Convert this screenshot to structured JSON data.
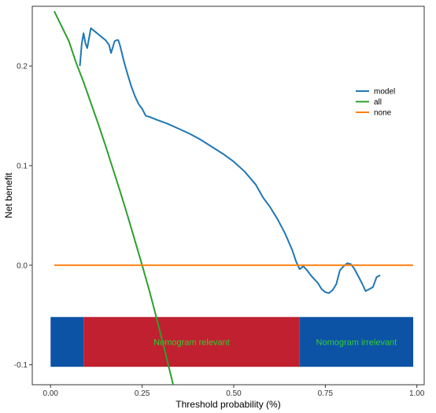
{
  "chart_data": {
    "type": "line",
    "title": "",
    "xlabel": "Threshold probability (%)",
    "ylabel": "Net benefit",
    "xlim": [
      -0.05,
      1.02
    ],
    "ylim": [
      -0.12,
      0.26
    ],
    "x_ticks": [
      0.0,
      0.25,
      0.5,
      0.75,
      1.0
    ],
    "x_tick_labels": [
      "0.00",
      "0.25",
      "0.50",
      "0.75",
      "1.00"
    ],
    "y_ticks": [
      -0.1,
      0.0,
      0.1,
      0.2
    ],
    "y_tick_labels": [
      "-0.1",
      "0.0",
      "0.1",
      "0.2"
    ],
    "grid": false,
    "legend": {
      "placement": "right"
    },
    "series": [
      {
        "name": "model",
        "color": "#1f77b4",
        "x": [
          0.08,
          0.085,
          0.09,
          0.095,
          0.1,
          0.11,
          0.12,
          0.13,
          0.14,
          0.15,
          0.16,
          0.165,
          0.17,
          0.175,
          0.18,
          0.185,
          0.19,
          0.2,
          0.21,
          0.22,
          0.23,
          0.24,
          0.25,
          0.26,
          0.27,
          0.29,
          0.32,
          0.35,
          0.38,
          0.41,
          0.44,
          0.47,
          0.5,
          0.53,
          0.56,
          0.58,
          0.6,
          0.62,
          0.64,
          0.66,
          0.67,
          0.68,
          0.69,
          0.7,
          0.71,
          0.72,
          0.73,
          0.74,
          0.75,
          0.76,
          0.77,
          0.78,
          0.79,
          0.8,
          0.81,
          0.82,
          0.83,
          0.84,
          0.85,
          0.86,
          0.87,
          0.88,
          0.89,
          0.9
        ],
        "y": [
          0.2,
          0.222,
          0.233,
          0.223,
          0.218,
          0.238,
          0.235,
          0.232,
          0.229,
          0.226,
          0.221,
          0.213,
          0.219,
          0.225,
          0.226,
          0.226,
          0.22,
          0.205,
          0.192,
          0.18,
          0.17,
          0.162,
          0.157,
          0.15,
          0.149,
          0.146,
          0.142,
          0.137,
          0.132,
          0.126,
          0.119,
          0.112,
          0.104,
          0.094,
          0.081,
          0.068,
          0.058,
          0.046,
          0.032,
          0.015,
          0.004,
          -0.004,
          -0.001,
          -0.005,
          -0.01,
          -0.014,
          -0.018,
          -0.024,
          -0.027,
          -0.028,
          -0.025,
          -0.019,
          -0.005,
          -0.001,
          0.002,
          0.001,
          -0.004,
          -0.011,
          -0.018,
          -0.026,
          -0.024,
          -0.022,
          -0.012,
          -0.01
        ]
      },
      {
        "name": "all",
        "color": "#2ca02c",
        "x": [
          0.01,
          0.03,
          0.05,
          0.07,
          0.09,
          0.11,
          0.13,
          0.15,
          0.17,
          0.19,
          0.21,
          0.23,
          0.25,
          0.27,
          0.29,
          0.31,
          0.33,
          0.35
        ],
        "y": [
          0.255,
          0.24,
          0.225,
          0.203,
          0.184,
          0.163,
          0.142,
          0.12,
          0.097,
          0.074,
          0.05,
          0.025,
          0.0,
          -0.026,
          -0.054,
          -0.083,
          -0.113,
          -0.144
        ]
      },
      {
        "name": "none",
        "color": "#ff7f0e",
        "x": [
          0.01,
          0.99
        ],
        "y": [
          0.0,
          0.0
        ]
      }
    ],
    "bands": [
      {
        "x0": 0.0,
        "x1": 0.09,
        "y0": -0.102,
        "y1": -0.052,
        "color": "#0c53a6",
        "label": ""
      },
      {
        "x0": 0.09,
        "x1": 0.68,
        "y0": -0.102,
        "y1": -0.052,
        "color": "#c0202f",
        "label": "Nomogram relevant",
        "label_color": "#33cc33"
      },
      {
        "x0": 0.68,
        "x1": 0.99,
        "y0": -0.102,
        "y1": -0.052,
        "color": "#0c53a6",
        "label": "Nomogram irrelevant",
        "label_color": "#33cc33"
      }
    ]
  }
}
